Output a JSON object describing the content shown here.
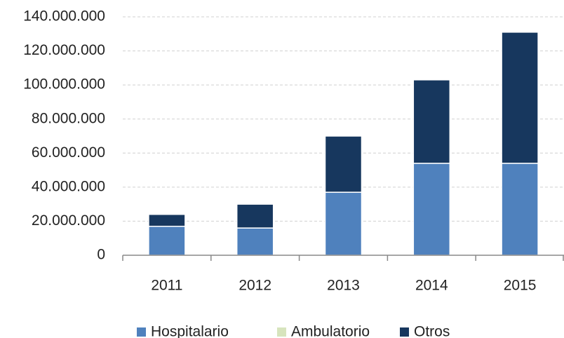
{
  "chart_data": {
    "type": "bar",
    "stacked": true,
    "categories": [
      "2011",
      "2012",
      "2013",
      "2014",
      "2015"
    ],
    "series": [
      {
        "name": "Hospitalario",
        "color": "#4f81bd",
        "values": [
          17000000,
          16000000,
          37000000,
          54000000,
          54000000
        ]
      },
      {
        "name": "Ambulatorio",
        "color": "#d7e4bd",
        "values": [
          0,
          0,
          0,
          0,
          0
        ]
      },
      {
        "name": "Otros",
        "color": "#17375e",
        "values": [
          7000000,
          14000000,
          33000000,
          49000000,
          77000000
        ]
      }
    ],
    "ylim": [
      0,
      140000000
    ],
    "yticks": [
      0,
      {
        "value": 20000000,
        "label": "20.000.000"
      },
      {
        "value": 40000000,
        "label": "40.000.000"
      },
      {
        "value": 60000000,
        "label": "60.000.000"
      },
      {
        "value": 80000000,
        "label": "80.000.000"
      },
      {
        "value": 100000000,
        "label": "100.000.000"
      },
      {
        "value": 120000000,
        "label": "120.000.000"
      },
      {
        "value": 140000000,
        "label": "140.000.000"
      }
    ],
    "grid": true,
    "legend": "bottom"
  }
}
